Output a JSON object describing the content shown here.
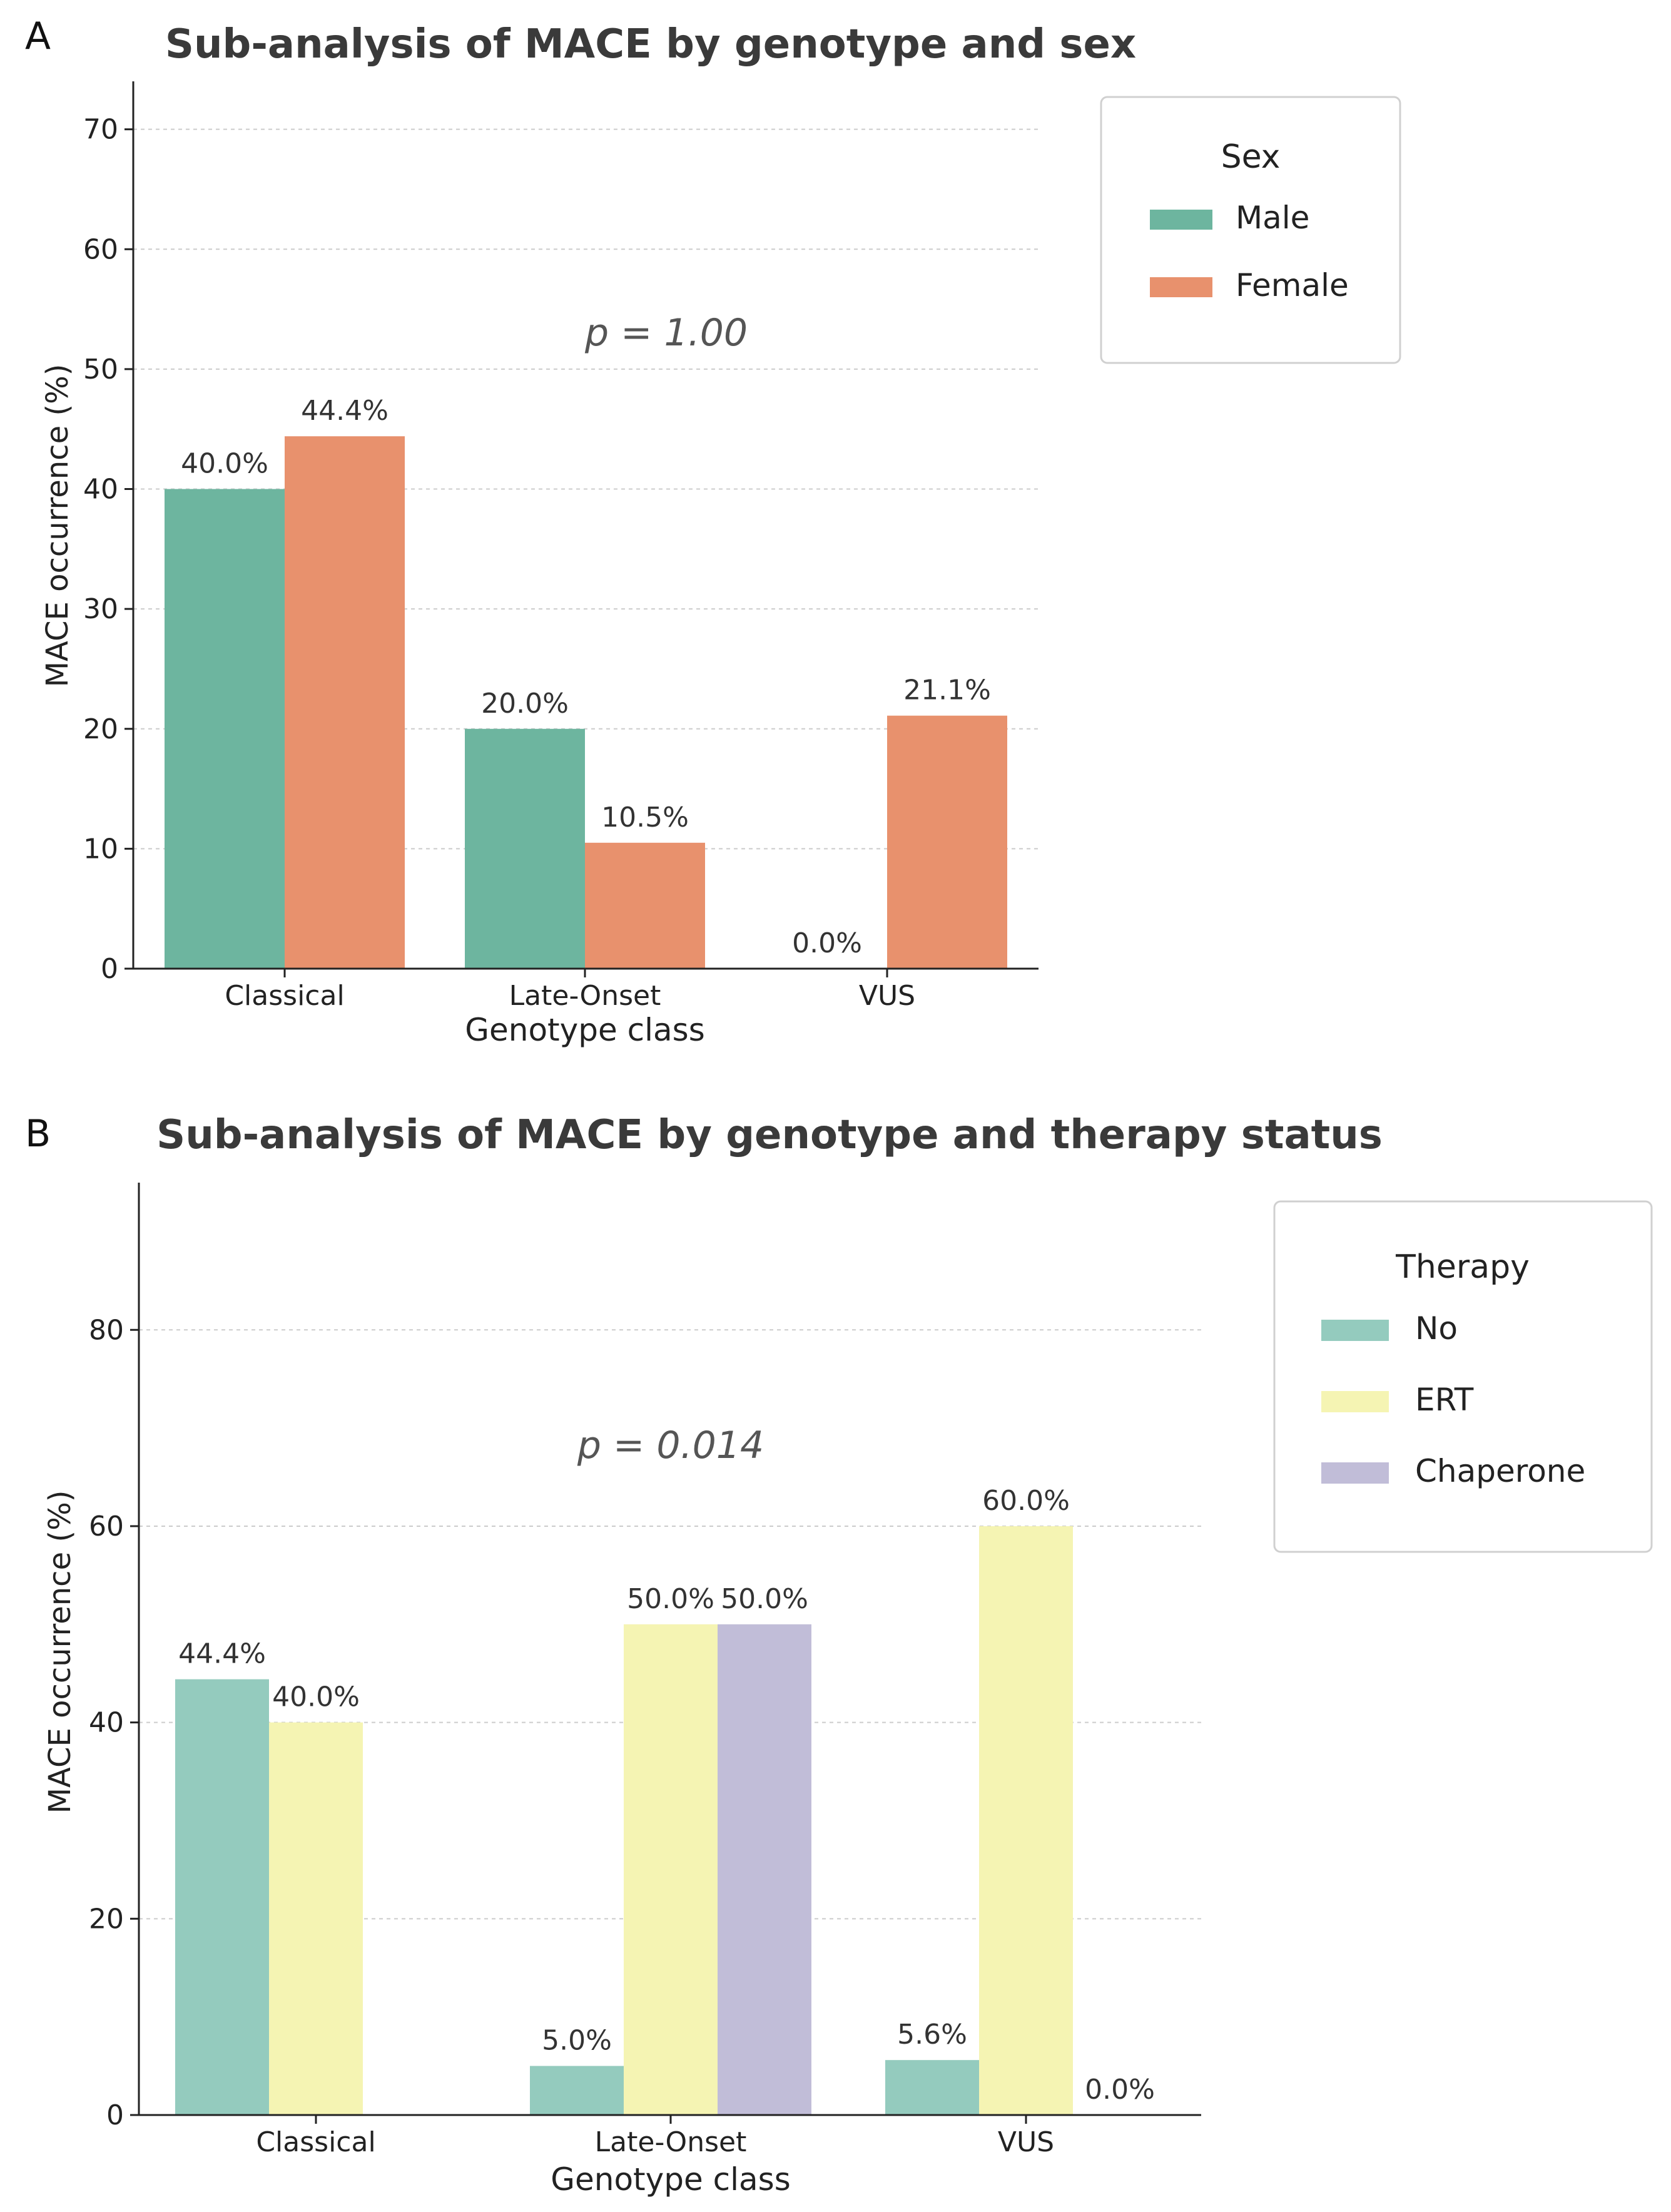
{
  "chart_data": [
    {
      "panel": "A",
      "type": "bar",
      "title": "Sub-analysis of MACE by genotype and sex",
      "xlabel": "Genotype class",
      "ylabel": "MACE occurrence (%)",
      "categories": [
        "Classical",
        "Late-Onset",
        "VUS"
      ],
      "ylim": [
        0,
        74
      ],
      "yticks": [
        0,
        10,
        20,
        30,
        40,
        50,
        60,
        70
      ],
      "grid": true,
      "legend": {
        "title": "Sex",
        "position": "right"
      },
      "annotation": "p = 1.00",
      "series": [
        {
          "name": "Male",
          "color": "#6db59f",
          "values": [
            40.0,
            20.0,
            0.0
          ],
          "labels": [
            "40.0%",
            "20.0%",
            "0.0%"
          ]
        },
        {
          "name": "Female",
          "color": "#e8916d",
          "values": [
            44.4,
            10.5,
            21.1
          ],
          "labels": [
            "44.4%",
            "10.5%",
            "21.1%"
          ]
        }
      ]
    },
    {
      "panel": "B",
      "type": "bar",
      "title": "Sub-analysis of MACE by genotype and therapy status",
      "xlabel": "Genotype class",
      "ylabel": "MACE occurrence (%)",
      "categories": [
        "Classical",
        "Late-Onset",
        "VUS"
      ],
      "ylim": [
        0,
        95
      ],
      "yticks": [
        0,
        20,
        40,
        60,
        80
      ],
      "grid": true,
      "legend": {
        "title": "Therapy",
        "position": "right"
      },
      "annotation": "p = 0.014",
      "series": [
        {
          "name": "No",
          "color": "#94cbbe",
          "values": [
            44.4,
            5.0,
            5.6
          ],
          "labels": [
            "44.4%",
            "5.0%",
            "5.6%"
          ]
        },
        {
          "name": "ERT",
          "color": "#f5f4b3",
          "values": [
            40.0,
            50.0,
            60.0
          ],
          "labels": [
            "40.0%",
            "50.0%",
            "60.0%"
          ]
        },
        {
          "name": "Chaperone",
          "color": "#c1bdd8",
          "values": [
            null,
            50.0,
            0.0
          ],
          "labels": [
            null,
            "50.0%",
            "0.0%"
          ]
        }
      ]
    }
  ]
}
